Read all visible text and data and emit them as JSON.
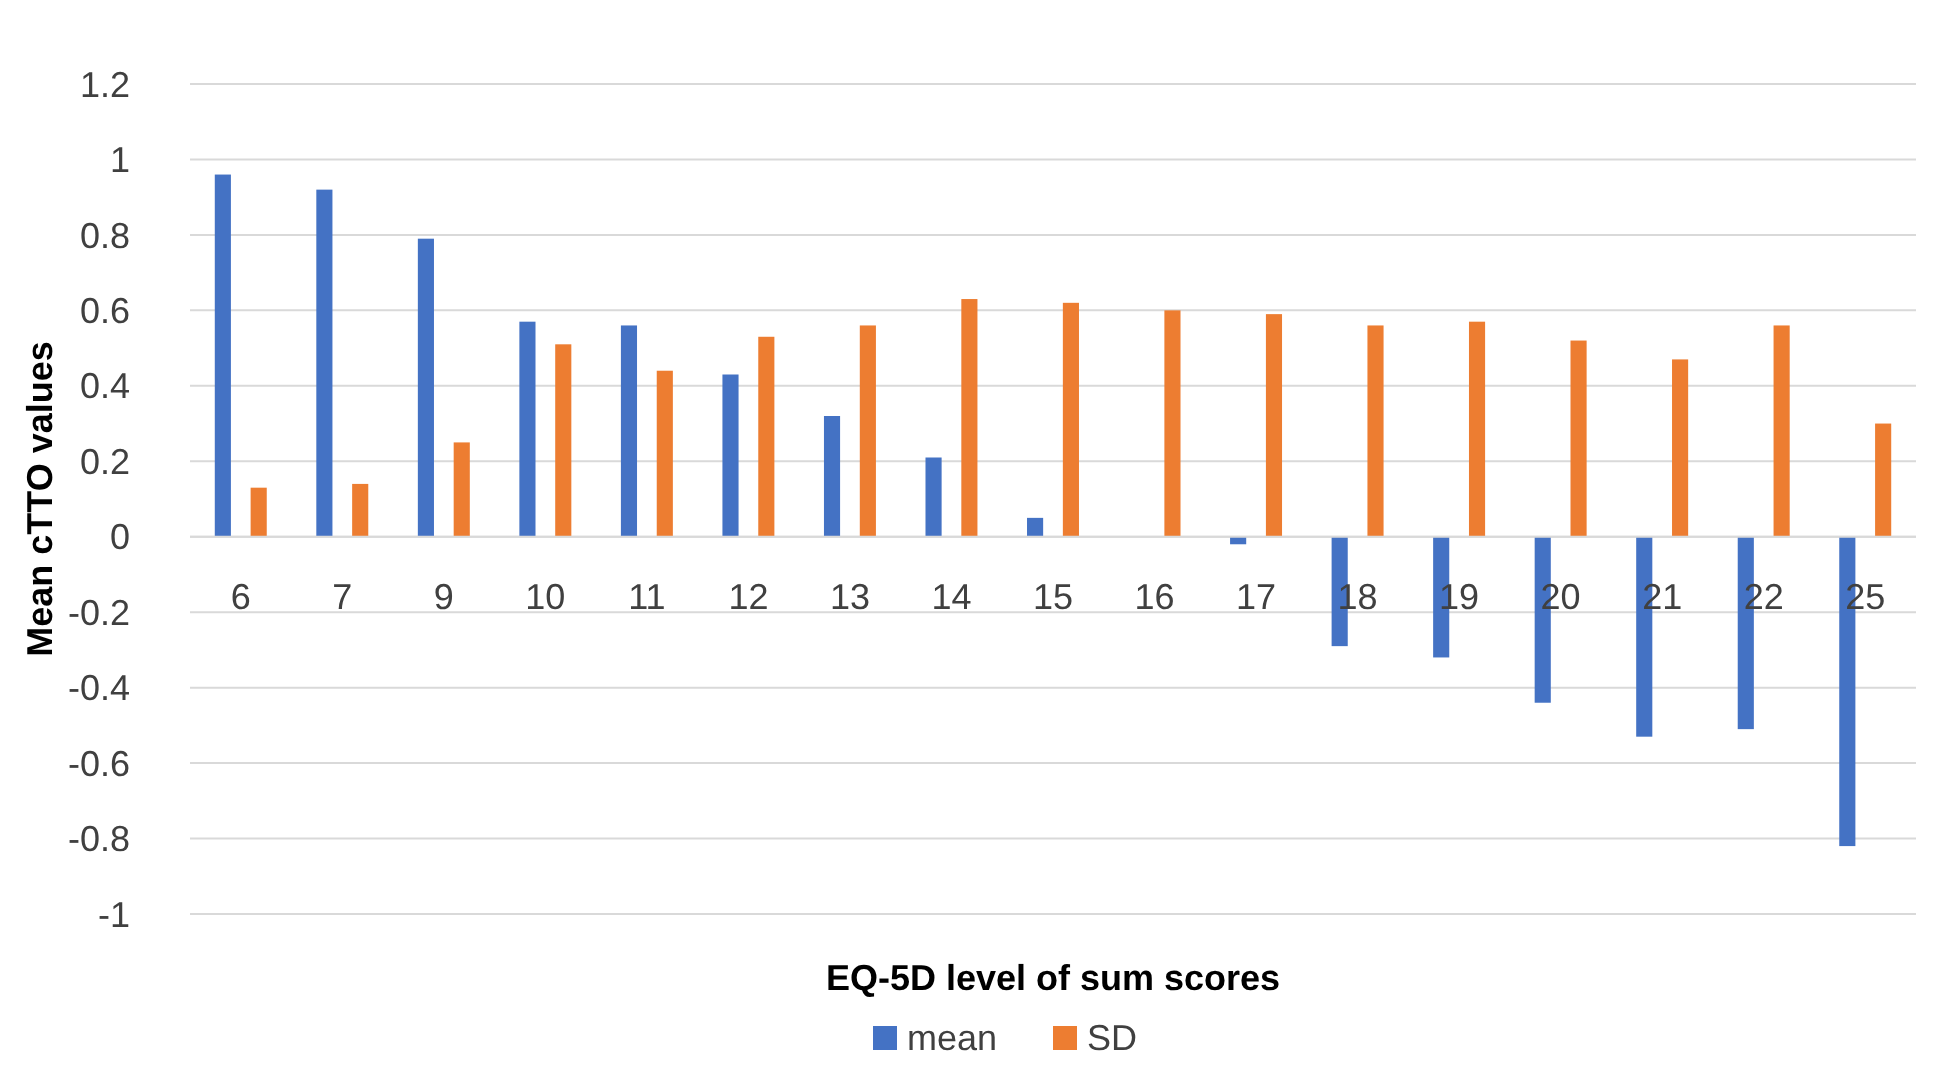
{
  "chart_data": {
    "type": "bar",
    "xlabel": "EQ-5D level of sum scores",
    "ylabel": "Mean cTTO values",
    "categories": [
      "6",
      "7",
      "9",
      "10",
      "11",
      "12",
      "13",
      "14",
      "15",
      "16",
      "17",
      "18",
      "19",
      "20",
      "21",
      "22",
      "25"
    ],
    "series": [
      {
        "name": "mean",
        "color": "#4472c4",
        "values": [
          0.96,
          0.92,
          0.79,
          0.57,
          0.56,
          0.43,
          0.32,
          0.21,
          0.05,
          0,
          -0.02,
          -0.29,
          -0.32,
          -0.44,
          -0.53,
          -0.51,
          -0.82
        ]
      },
      {
        "name": "SD",
        "color": "#ed7d31",
        "values": [
          0.13,
          0.14,
          0.25,
          0.51,
          0.44,
          0.53,
          0.56,
          0.63,
          0.62,
          0.6,
          0.59,
          0.56,
          0.57,
          0.52,
          0.47,
          0.56,
          0.3
        ]
      }
    ],
    "ylim": [
      -1,
      1.2
    ],
    "yticks": [
      -1,
      -0.8,
      -0.6,
      -0.4,
      -0.2,
      0,
      0.2,
      0.4,
      0.6,
      0.8,
      1,
      1.2
    ],
    "grid": "y",
    "legend": "bottom"
  }
}
